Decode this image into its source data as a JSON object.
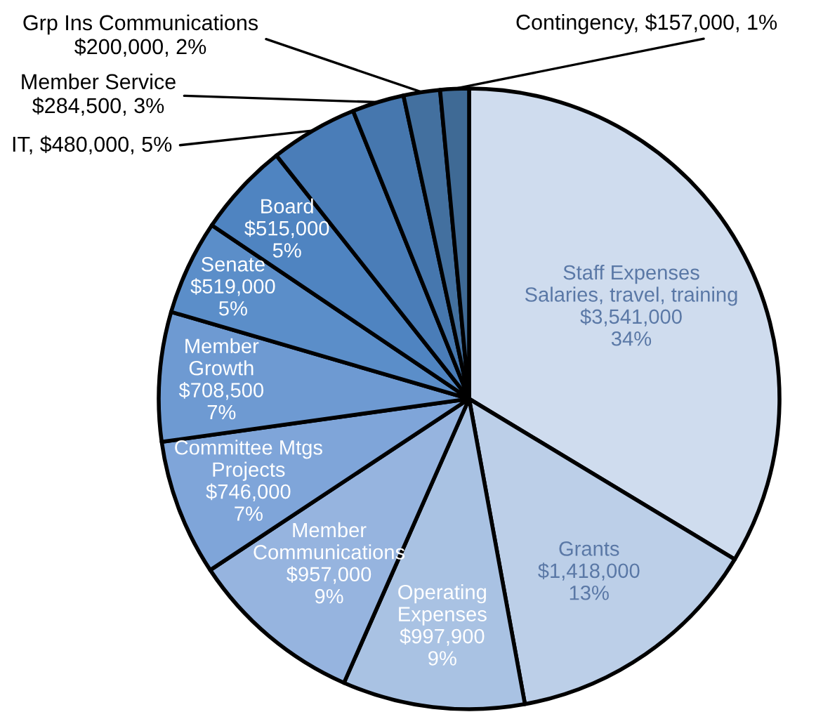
{
  "chart_data": {
    "type": "pie",
    "categories": [
      "Staff Expenses\nSalaries, travel, training",
      "Grants",
      "Operating\nExpenses",
      "Member\nCommunications",
      "Committee Mtgs\nProjects",
      "Member\nGrowth",
      "Senate",
      "Board",
      "IT",
      "Member Service",
      "Grp Ins Communications",
      "Contingency"
    ],
    "values": [
      3541000,
      1418000,
      997900,
      957000,
      746000,
      708500,
      519000,
      515000,
      480000,
      284500,
      200000,
      157000
    ],
    "value_labels": [
      "\n$3,541,000\n34%",
      "\n$1,418,000\n13%",
      "\n$997,900\n9%",
      "\n$957,000\n9%",
      "\n$746,000\n7%",
      "\n$708,500\n7%",
      "\n$519,000\n5%",
      "\n$515,000\n5%",
      ", $480,000, 5%",
      "\n$284,500, 3%",
      "\n$200,000, 2%",
      ", $157,000, 1%"
    ],
    "colors": [
      "#cfdcee",
      "#bccfe8",
      "#a9c2e3",
      "#96b4df",
      "#7fa5d9",
      "#6e9ad2",
      "#5b8ec9",
      "#4f84c1",
      "#4a7db8",
      "#4677ae",
      "#43709f",
      "#3f6a95"
    ]
  }
}
